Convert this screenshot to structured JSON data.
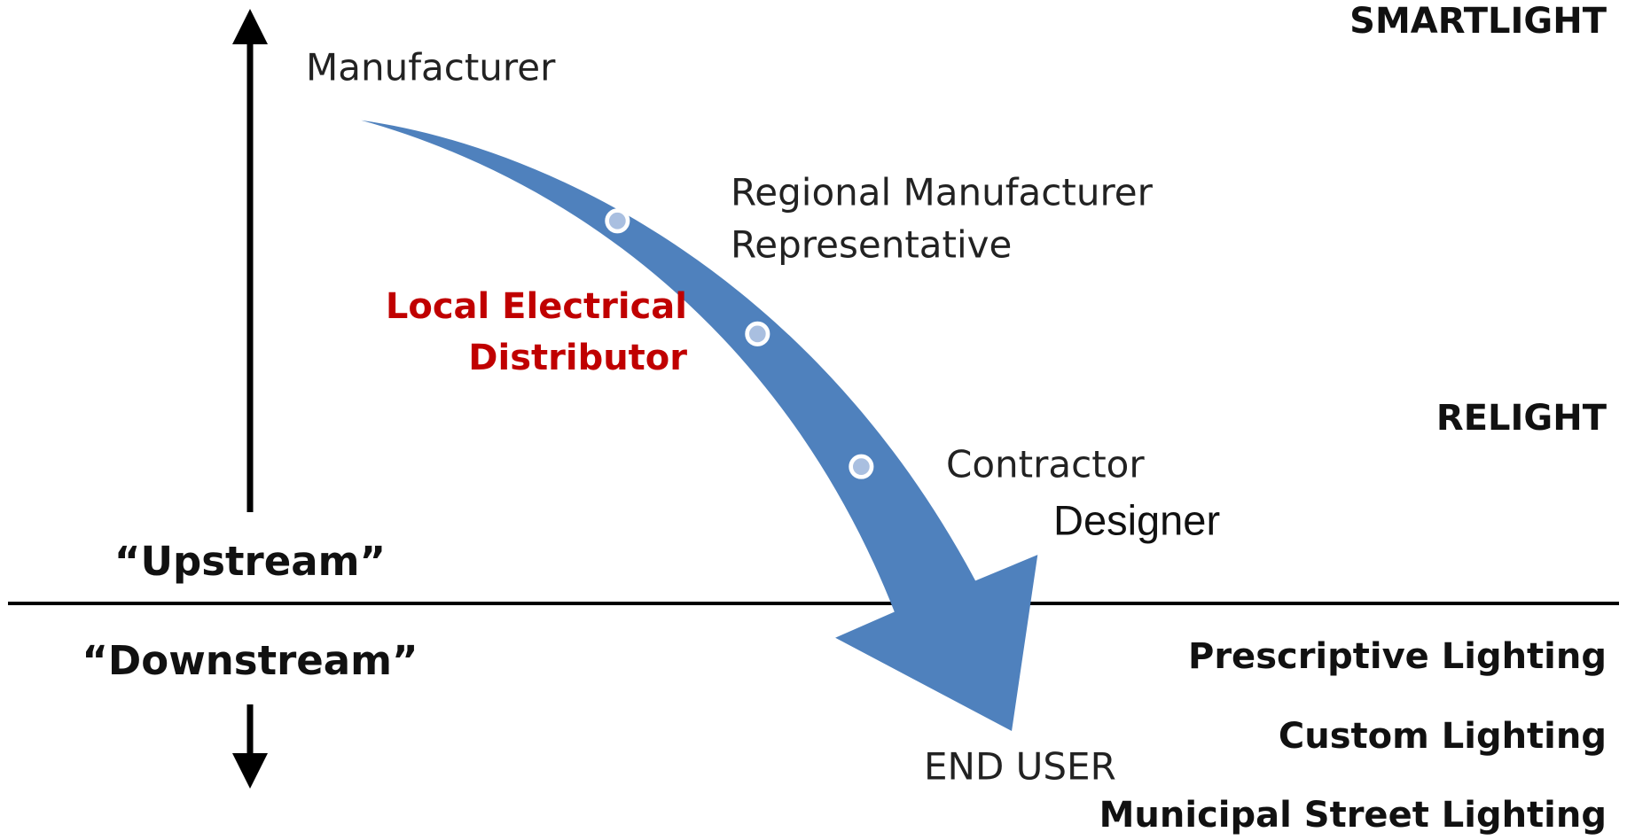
{
  "nodes": [
    {
      "label": "Manufacturer"
    },
    {
      "label_lines": [
        "Regional Manufacturer",
        "Representative"
      ]
    },
    {
      "label_lines": [
        "Local Electrical",
        "Distributor"
      ]
    },
    {
      "label": "Contractor"
    },
    {
      "label": "Designer"
    },
    {
      "label": "END USER"
    }
  ],
  "axis": {
    "upstream": "“Upstream”",
    "downstream": "“Downstream”"
  },
  "programs": [
    "SMARTLIGHT",
    "RELIGHT",
    "Prescriptive Lighting",
    "Custom Lighting",
    "Municipal Street Lighting"
  ]
}
